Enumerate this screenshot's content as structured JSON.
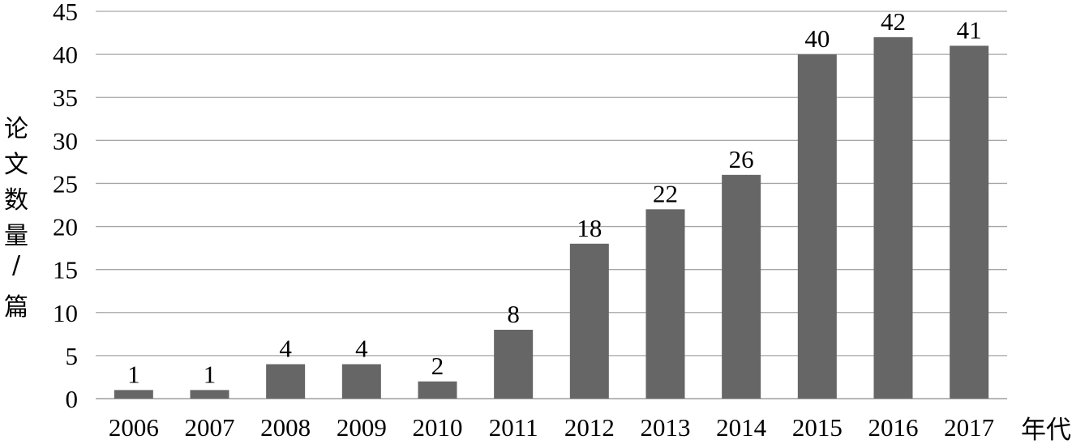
{
  "chart_data": {
    "type": "bar",
    "categories": [
      "2006",
      "2007",
      "2008",
      "2009",
      "2010",
      "2011",
      "2012",
      "2013",
      "2014",
      "2015",
      "2016",
      "2017"
    ],
    "values": [
      1,
      1,
      4,
      4,
      2,
      8,
      18,
      22,
      26,
      40,
      42,
      41
    ],
    "data_labels": [
      "1",
      "1",
      "4",
      "4",
      "2",
      "8",
      "18",
      "22",
      "26",
      "40",
      "42",
      "41"
    ],
    "xlabel": "年代",
    "ylabel": "论文数量/篇",
    "ylim": [
      0,
      45
    ],
    "yticks": [
      0,
      5,
      10,
      15,
      20,
      25,
      30,
      35,
      40,
      45
    ],
    "ytick_labels": [
      "0",
      "5",
      "10",
      "15",
      "20",
      "25",
      "30",
      "35",
      "40",
      "45"
    ],
    "grid": true,
    "bar_color": "#666666",
    "grid_color": "#a6a6a6"
  }
}
